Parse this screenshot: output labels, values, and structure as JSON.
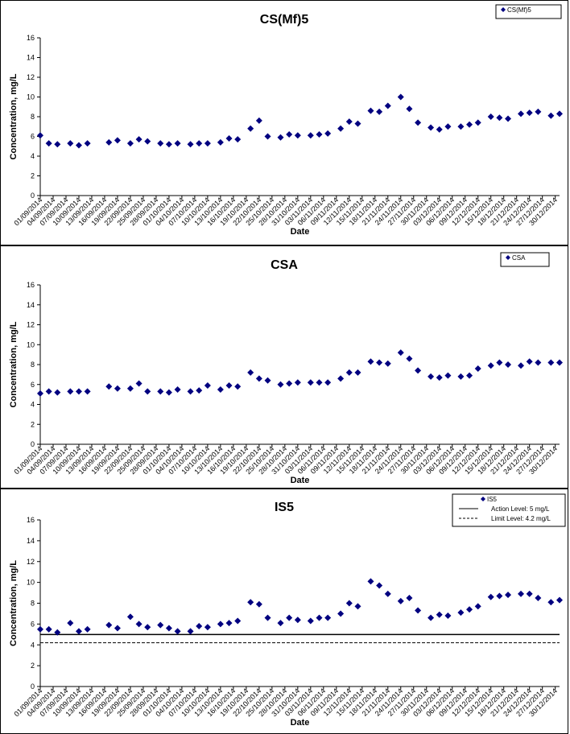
{
  "chart_data": [
    {
      "type": "scatter",
      "title": "CS(Mf)5",
      "xlabel": "Date",
      "ylabel": "Concentration, mg/L",
      "ylim": [
        0,
        16
      ],
      "yticks": [
        0,
        2,
        4,
        6,
        8,
        10,
        12,
        14,
        16
      ],
      "x_range": [
        "01/09/2014",
        "31/12/2014"
      ],
      "xticks": [
        "01/09/2014",
        "04/09/2014",
        "07/09/2014",
        "10/09/2014",
        "13/09/2014",
        "16/09/2014",
        "19/09/2014",
        "22/09/2014",
        "25/09/2014",
        "28/09/2014",
        "01/10/2014",
        "04/10/2014",
        "07/10/2014",
        "10/10/2014",
        "13/10/2014",
        "16/10/2014",
        "19/10/2014",
        "22/10/2014",
        "25/10/2014",
        "28/10/2014",
        "31/10/2014",
        "03/11/2014",
        "06/11/2014",
        "09/11/2014",
        "12/11/2014",
        "15/11/2014",
        "18/11/2014",
        "21/11/2014",
        "24/11/2014",
        "27/11/2014",
        "30/11/2014",
        "03/12/2014",
        "06/12/2014",
        "09/12/2014",
        "12/12/2014",
        "15/12/2014",
        "18/12/2014",
        "21/12/2014",
        "24/12/2014",
        "27/12/2014",
        "30/12/2014"
      ],
      "legend_position": "top-right",
      "grid": false,
      "series": [
        {
          "name": "CS(Mf)5",
          "color": "#000080",
          "marker": "diamond",
          "x": [
            "01/09/2014",
            "03/09/2014",
            "05/09/2014",
            "08/09/2014",
            "10/09/2014",
            "12/09/2014",
            "17/09/2014",
            "19/09/2014",
            "22/09/2014",
            "24/09/2014",
            "26/09/2014",
            "29/09/2014",
            "01/10/2014",
            "03/10/2014",
            "06/10/2014",
            "08/10/2014",
            "10/10/2014",
            "13/10/2014",
            "15/10/2014",
            "17/10/2014",
            "20/10/2014",
            "22/10/2014",
            "24/10/2014",
            "27/10/2014",
            "29/10/2014",
            "31/10/2014",
            "03/11/2014",
            "05/11/2014",
            "07/11/2014",
            "10/11/2014",
            "12/11/2014",
            "14/11/2014",
            "17/11/2014",
            "19/11/2014",
            "21/11/2014",
            "24/11/2014",
            "26/11/2014",
            "28/11/2014",
            "01/12/2014",
            "03/12/2014",
            "05/12/2014",
            "08/12/2014",
            "10/12/2014",
            "12/12/2014",
            "15/12/2014",
            "17/12/2014",
            "19/12/2014",
            "22/12/2014",
            "24/12/2014",
            "26/12/2014",
            "29/12/2014",
            "31/12/2014"
          ],
          "y": [
            6.1,
            5.3,
            5.2,
            5.3,
            5.1,
            5.3,
            5.4,
            5.6,
            5.3,
            5.7,
            5.5,
            5.3,
            5.2,
            5.3,
            5.2,
            5.3,
            5.3,
            5.4,
            5.8,
            5.7,
            6.8,
            7.6,
            6.0,
            5.9,
            6.2,
            6.1,
            6.1,
            6.2,
            6.3,
            6.8,
            7.5,
            7.3,
            8.6,
            8.5,
            9.1,
            10.0,
            8.8,
            7.4,
            6.9,
            6.7,
            7.0,
            7.0,
            7.2,
            7.4,
            8.0,
            7.9,
            7.8,
            8.3,
            8.4,
            8.5,
            8.1,
            8.3
          ]
        }
      ]
    },
    {
      "type": "scatter",
      "title": "CSA",
      "xlabel": "Date",
      "ylabel": "Concentration, mg/L",
      "ylim": [
        0,
        16
      ],
      "yticks": [
        0,
        2,
        4,
        6,
        8,
        10,
        12,
        14,
        16
      ],
      "x_range": [
        "01/09/2014",
        "31/12/2014"
      ],
      "xticks": [
        "01/09/2014",
        "04/09/2014",
        "07/09/2014",
        "10/09/2014",
        "13/09/2014",
        "16/09/2014",
        "19/09/2014",
        "22/09/2014",
        "25/09/2014",
        "28/09/2014",
        "01/10/2014",
        "04/10/2014",
        "07/10/2014",
        "10/10/2014",
        "13/10/2014",
        "16/10/2014",
        "19/10/2014",
        "22/10/2014",
        "25/10/2014",
        "28/10/2014",
        "31/10/2014",
        "03/11/2014",
        "06/11/2014",
        "09/11/2014",
        "12/11/2014",
        "15/11/2014",
        "18/11/2014",
        "21/11/2014",
        "24/11/2014",
        "27/11/2014",
        "30/11/2014",
        "03/12/2014",
        "06/12/2014",
        "09/12/2014",
        "12/12/2014",
        "15/12/2014",
        "18/12/2014",
        "21/12/2014",
        "24/12/2014",
        "27/12/2014",
        "30/12/2014"
      ],
      "legend_position": "top-right",
      "grid": false,
      "series": [
        {
          "name": "CSA",
          "color": "#000080",
          "marker": "diamond",
          "x": [
            "01/09/2014",
            "03/09/2014",
            "05/09/2014",
            "08/09/2014",
            "10/09/2014",
            "12/09/2014",
            "17/09/2014",
            "19/09/2014",
            "22/09/2014",
            "24/09/2014",
            "26/09/2014",
            "29/09/2014",
            "01/10/2014",
            "03/10/2014",
            "06/10/2014",
            "08/10/2014",
            "10/10/2014",
            "13/10/2014",
            "15/10/2014",
            "17/10/2014",
            "20/10/2014",
            "22/10/2014",
            "24/10/2014",
            "27/10/2014",
            "29/10/2014",
            "31/10/2014",
            "03/11/2014",
            "05/11/2014",
            "07/11/2014",
            "10/11/2014",
            "12/11/2014",
            "14/11/2014",
            "17/11/2014",
            "19/11/2014",
            "21/11/2014",
            "24/11/2014",
            "26/11/2014",
            "28/11/2014",
            "01/12/2014",
            "03/12/2014",
            "05/12/2014",
            "08/12/2014",
            "10/12/2014",
            "12/12/2014",
            "15/12/2014",
            "17/12/2014",
            "19/12/2014",
            "22/12/2014",
            "24/12/2014",
            "26/12/2014",
            "29/12/2014",
            "31/12/2014"
          ],
          "y": [
            5.1,
            5.3,
            5.2,
            5.3,
            5.3,
            5.3,
            5.8,
            5.6,
            5.6,
            6.1,
            5.3,
            5.3,
            5.2,
            5.5,
            5.3,
            5.4,
            5.9,
            5.5,
            5.9,
            5.8,
            7.2,
            6.6,
            6.4,
            6.0,
            6.1,
            6.2,
            6.2,
            6.2,
            6.2,
            6.6,
            7.2,
            7.2,
            8.3,
            8.2,
            8.1,
            9.2,
            8.6,
            7.4,
            6.8,
            6.7,
            6.9,
            6.8,
            6.9,
            7.6,
            7.9,
            8.2,
            8.0,
            7.9,
            8.3,
            8.2,
            8.2,
            8.2
          ]
        }
      ]
    },
    {
      "type": "scatter",
      "title": "IS5",
      "xlabel": "Date",
      "ylabel": "Concentration, mg/L",
      "ylim": [
        0,
        16
      ],
      "yticks": [
        0,
        2,
        4,
        6,
        8,
        10,
        12,
        14,
        16
      ],
      "x_range": [
        "01/09/2014",
        "31/12/2014"
      ],
      "xticks": [
        "01/09/2014",
        "04/09/2014",
        "07/09/2014",
        "10/09/2014",
        "13/09/2014",
        "16/09/2014",
        "19/09/2014",
        "22/09/2014",
        "25/09/2014",
        "28/09/2014",
        "01/10/2014",
        "04/10/2014",
        "07/10/2014",
        "10/10/2014",
        "13/10/2014",
        "16/10/2014",
        "19/10/2014",
        "22/10/2014",
        "25/10/2014",
        "28/10/2014",
        "31/10/2014",
        "03/11/2014",
        "06/11/2014",
        "09/11/2014",
        "12/11/2014",
        "15/11/2014",
        "18/11/2014",
        "21/11/2014",
        "24/11/2014",
        "27/11/2014",
        "30/11/2014",
        "03/12/2014",
        "06/12/2014",
        "09/12/2014",
        "12/12/2014",
        "15/12/2014",
        "18/12/2014",
        "21/12/2014",
        "24/12/2014",
        "27/12/2014",
        "30/12/2014"
      ],
      "legend_position": "top-right",
      "grid": false,
      "series": [
        {
          "name": "IS5",
          "color": "#000080",
          "marker": "diamond",
          "x": [
            "01/09/2014",
            "03/09/2014",
            "05/09/2014",
            "08/09/2014",
            "10/09/2014",
            "12/09/2014",
            "17/09/2014",
            "19/09/2014",
            "22/09/2014",
            "24/09/2014",
            "26/09/2014",
            "29/09/2014",
            "01/10/2014",
            "03/10/2014",
            "06/10/2014",
            "08/10/2014",
            "10/10/2014",
            "13/10/2014",
            "15/10/2014",
            "17/10/2014",
            "20/10/2014",
            "22/10/2014",
            "24/10/2014",
            "27/10/2014",
            "29/10/2014",
            "31/10/2014",
            "03/11/2014",
            "05/11/2014",
            "07/11/2014",
            "10/11/2014",
            "12/11/2014",
            "14/11/2014",
            "17/11/2014",
            "19/11/2014",
            "21/11/2014",
            "24/11/2014",
            "26/11/2014",
            "28/11/2014",
            "01/12/2014",
            "03/12/2014",
            "05/12/2014",
            "08/12/2014",
            "10/12/2014",
            "12/12/2014",
            "15/12/2014",
            "17/12/2014",
            "19/12/2014",
            "22/12/2014",
            "24/12/2014",
            "26/12/2014",
            "29/12/2014",
            "31/12/2014"
          ],
          "y": [
            5.5,
            5.5,
            5.2,
            6.1,
            5.3,
            5.5,
            5.9,
            5.6,
            6.7,
            6.0,
            5.7,
            5.9,
            5.6,
            5.3,
            5.3,
            5.8,
            5.7,
            6.0,
            6.1,
            6.3,
            8.1,
            7.9,
            6.6,
            6.1,
            6.6,
            6.4,
            6.3,
            6.6,
            6.6,
            7.0,
            8.0,
            7.7,
            10.1,
            9.7,
            8.9,
            8.2,
            8.5,
            7.3,
            6.6,
            6.9,
            6.8,
            7.1,
            7.4,
            7.7,
            8.6,
            8.7,
            8.8,
            8.9,
            8.9,
            8.5,
            8.1,
            8.3
          ]
        }
      ],
      "reference_lines": [
        {
          "name": "Action Level: 5 mg/L",
          "y": 5,
          "style": "solid",
          "color": "#000000"
        },
        {
          "name": "Limit Level: 4.2 mg/L",
          "y": 4.2,
          "style": "dashed",
          "color": "#000000"
        }
      ]
    }
  ]
}
